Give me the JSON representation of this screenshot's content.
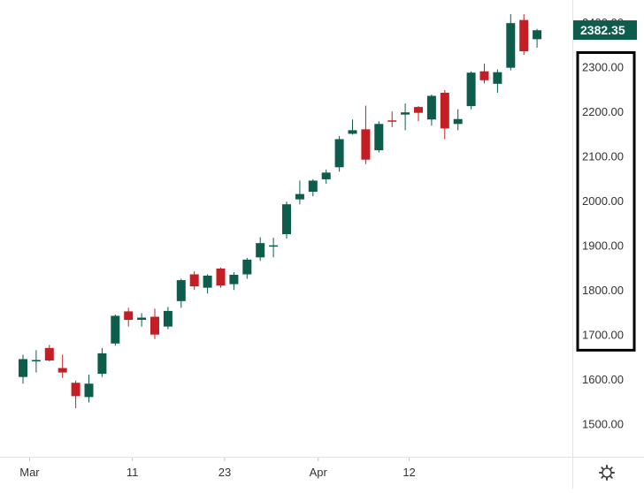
{
  "chart_data": {
    "type": "candlestick",
    "title": "",
    "xlabel": "",
    "ylabel": "",
    "ylim": [
      1440,
      2430
    ],
    "grid": false,
    "x_tick_labels": [
      {
        "label": "Mar",
        "bar_index": 0.5
      },
      {
        "label": "11",
        "bar_index": 8.3
      },
      {
        "label": "23",
        "bar_index": 15.3
      },
      {
        "label": "Apr",
        "bar_index": 22.4
      },
      {
        "label": "12",
        "bar_index": 29.3
      }
    ],
    "y_tick_values": [
      1500,
      1600,
      1700,
      1800,
      1900,
      2000,
      2100,
      2200,
      2300,
      2400
    ],
    "y_tick_labels": [
      "1500.00",
      "1600.00",
      "1700.00",
      "1800.00",
      "1900.00",
      "2000.00",
      "2100.00",
      "2200.00",
      "2300.00",
      "2400.00"
    ],
    "last_price": 2382.35,
    "last_price_label": "2382.35",
    "colors": {
      "up": "#0d5c4c",
      "down": "#c41e24",
      "axis_text": "#333333",
      "price_tag_bg": "#0d5c4c",
      "price_tag_text": "#ffffff",
      "highlight_box": "#000000"
    },
    "highlight_range": [
      1665,
      2332
    ],
    "candles": [
      {
        "o": 1605,
        "h": 1655,
        "l": 1590,
        "c": 1645
      },
      {
        "o": 1640,
        "h": 1665,
        "l": 1615,
        "c": 1643
      },
      {
        "o": 1670,
        "h": 1677,
        "l": 1640,
        "c": 1642
      },
      {
        "o": 1625,
        "h": 1655,
        "l": 1603,
        "c": 1615
      },
      {
        "o": 1592,
        "h": 1597,
        "l": 1535,
        "c": 1562
      },
      {
        "o": 1560,
        "h": 1610,
        "l": 1548,
        "c": 1590
      },
      {
        "o": 1612,
        "h": 1670,
        "l": 1605,
        "c": 1658
      },
      {
        "o": 1680,
        "h": 1745,
        "l": 1675,
        "c": 1742
      },
      {
        "o": 1752,
        "h": 1760,
        "l": 1718,
        "c": 1733
      },
      {
        "o": 1733,
        "h": 1748,
        "l": 1718,
        "c": 1738
      },
      {
        "o": 1740,
        "h": 1758,
        "l": 1690,
        "c": 1700
      },
      {
        "o": 1718,
        "h": 1762,
        "l": 1712,
        "c": 1753
      },
      {
        "o": 1775,
        "h": 1825,
        "l": 1760,
        "c": 1822
      },
      {
        "o": 1835,
        "h": 1842,
        "l": 1800,
        "c": 1808
      },
      {
        "o": 1805,
        "h": 1835,
        "l": 1792,
        "c": 1832
      },
      {
        "o": 1848,
        "h": 1850,
        "l": 1805,
        "c": 1810
      },
      {
        "o": 1813,
        "h": 1840,
        "l": 1800,
        "c": 1834
      },
      {
        "o": 1835,
        "h": 1872,
        "l": 1825,
        "c": 1868
      },
      {
        "o": 1873,
        "h": 1918,
        "l": 1865,
        "c": 1905
      },
      {
        "o": 1898,
        "h": 1917,
        "l": 1873,
        "c": 1900
      },
      {
        "o": 1925,
        "h": 1998,
        "l": 1915,
        "c": 1992
      },
      {
        "o": 2003,
        "h": 2045,
        "l": 1992,
        "c": 2015
      },
      {
        "o": 2020,
        "h": 2048,
        "l": 2010,
        "c": 2045
      },
      {
        "o": 2048,
        "h": 2070,
        "l": 2038,
        "c": 2063
      },
      {
        "o": 2075,
        "h": 2145,
        "l": 2065,
        "c": 2138
      },
      {
        "o": 2150,
        "h": 2182,
        "l": 2148,
        "c": 2158
      },
      {
        "o": 2160,
        "h": 2213,
        "l": 2082,
        "c": 2092
      },
      {
        "o": 2113,
        "h": 2178,
        "l": 2108,
        "c": 2172
      },
      {
        "o": 2180,
        "h": 2200,
        "l": 2165,
        "c": 2178
      },
      {
        "o": 2193,
        "h": 2218,
        "l": 2158,
        "c": 2198
      },
      {
        "o": 2210,
        "h": 2212,
        "l": 2178,
        "c": 2197
      },
      {
        "o": 2182,
        "h": 2238,
        "l": 2168,
        "c": 2235
      },
      {
        "o": 2242,
        "h": 2248,
        "l": 2138,
        "c": 2162
      },
      {
        "o": 2172,
        "h": 2205,
        "l": 2158,
        "c": 2183
      },
      {
        "o": 2212,
        "h": 2290,
        "l": 2205,
        "c": 2287
      },
      {
        "o": 2290,
        "h": 2307,
        "l": 2263,
        "c": 2270
      },
      {
        "o": 2262,
        "h": 2294,
        "l": 2242,
        "c": 2288
      },
      {
        "o": 2298,
        "h": 2418,
        "l": 2292,
        "c": 2398
      },
      {
        "o": 2405,
        "h": 2418,
        "l": 2327,
        "c": 2335
      },
      {
        "o": 2362,
        "h": 2385,
        "l": 2343,
        "c": 2382
      }
    ]
  },
  "settings_icon": "gear-icon"
}
